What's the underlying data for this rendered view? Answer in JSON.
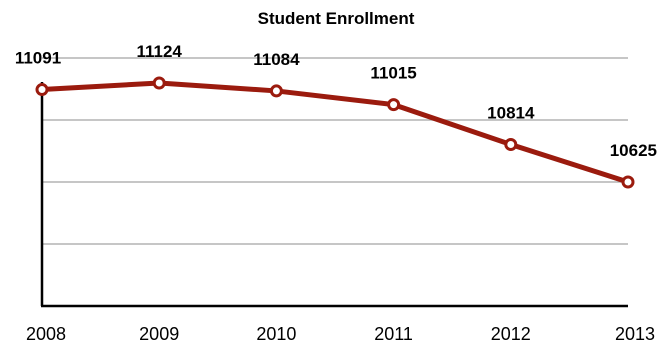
{
  "chart_data": {
    "type": "line",
    "title": "Student Enrollment",
    "xlabel": "",
    "ylabel": "",
    "categories": [
      "2008",
      "2009",
      "2010",
      "2011",
      "2012",
      "2013"
    ],
    "series": [
      {
        "values": [
          11091,
          11124,
          11084,
          11015,
          10814,
          10625
        ],
        "color": "#9b1b0e"
      }
    ],
    "data_labels": [
      "11091",
      "11124",
      "11084",
      "11015",
      "10814",
      "10625"
    ],
    "ylim": [
      10000,
      11250
    ],
    "grid": true,
    "legend": "none"
  }
}
